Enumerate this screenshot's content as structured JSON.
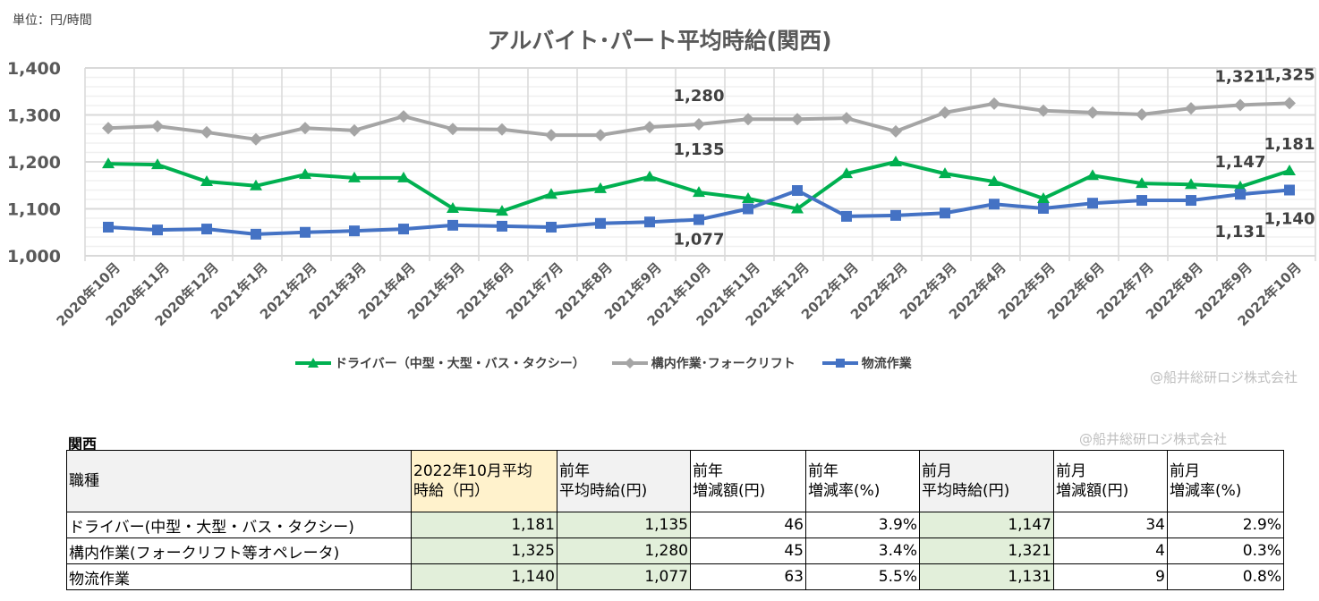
{
  "unit_label": "単位：円/時間",
  "chart_data": {
    "type": "line",
    "title": "アルバイト･パート平均時給(関西)",
    "ylim": [
      1000,
      1400
    ],
    "yticks": [
      "1,000",
      "1,100",
      "1,200",
      "1,300",
      "1,400"
    ],
    "grid": true,
    "legend_position": "bottom",
    "categories": [
      "2020年10月",
      "2020年11月",
      "2020年12月",
      "2021年1月",
      "2021年2月",
      "2021年3月",
      "2021年4月",
      "2021年5月",
      "2021年6月",
      "2021年7月",
      "2021年8月",
      "2021年9月",
      "2021年10月",
      "2021年11月",
      "2021年12月",
      "2022年1月",
      "2022年2月",
      "2022年3月",
      "2022年4月",
      "2022年5月",
      "2022年6月",
      "2022年7月",
      "2022年8月",
      "2022年9月",
      "2022年10月"
    ],
    "series": [
      {
        "name": "ドライバー（中型・大型・バス・タクシー）",
        "color": "#00b050",
        "marker": "triangle",
        "values": [
          1196,
          1194,
          1158,
          1149,
          1173,
          1166,
          1166,
          1101,
          1095,
          1131,
          1143,
          1168,
          1135,
          1122,
          1100,
          1175,
          1200,
          1175,
          1158,
          1122,
          1171,
          1154,
          1152,
          1147,
          1181
        ]
      },
      {
        "name": "構内作業･フォークリフト",
        "color": "#a5a5a5",
        "marker": "diamond",
        "values": [
          1272,
          1276,
          1263,
          1248,
          1272,
          1267,
          1297,
          1270,
          1269,
          1257,
          1257,
          1274,
          1280,
          1291,
          1291,
          1293,
          1265,
          1305,
          1324,
          1309,
          1305,
          1301,
          1314,
          1321,
          1325
        ]
      },
      {
        "name": "物流作業",
        "color": "#4472c4",
        "marker": "square",
        "values": [
          1061,
          1055,
          1057,
          1046,
          1050,
          1053,
          1057,
          1065,
          1063,
          1061,
          1069,
          1072,
          1077,
          1100,
          1139,
          1084,
          1086,
          1091,
          1110,
          1101,
          1112,
          1118,
          1118,
          1131,
          1140
        ]
      }
    ],
    "data_labels": [
      {
        "series": 1,
        "index": 12,
        "text": "1,280"
      },
      {
        "series": 0,
        "index": 12,
        "text": "1,135"
      },
      {
        "series": 2,
        "index": 12,
        "text": "1,077"
      },
      {
        "series": 1,
        "index": 23,
        "text": "1,321"
      },
      {
        "series": 1,
        "index": 24,
        "text": "1,325"
      },
      {
        "series": 0,
        "index": 23,
        "text": "1,147"
      },
      {
        "series": 0,
        "index": 24,
        "text": "1,181"
      },
      {
        "series": 2,
        "index": 23,
        "text": "1,131"
      },
      {
        "series": 2,
        "index": 24,
        "text": "1,140"
      }
    ]
  },
  "copyright": "@船井総研ロジ株式会社",
  "table": {
    "region": "関西",
    "headers": [
      "職種",
      "2022年10月平均時給（円）",
      "前年平均時給(円)",
      "前年増減額(円)",
      "前年増減率(%)",
      "前月平均時給(円)",
      "前月増減額(円)",
      "前月増減率(%)"
    ],
    "header_lines": [
      [
        "職種"
      ],
      [
        "2022年10月平均",
        "時給（円）"
      ],
      [
        "前年",
        "平均時給(円)"
      ],
      [
        "前年",
        "増減額(円)"
      ],
      [
        "前年",
        "増減率(%)"
      ],
      [
        "前月",
        "平均時給(円)"
      ],
      [
        "前月",
        "増減額(円)"
      ],
      [
        "前月",
        "増減率(%)"
      ]
    ],
    "rows": [
      [
        "ドライバー(中型・大型・バス・タクシー)",
        "1,181",
        "1,135",
        "46",
        "3.9%",
        "1,147",
        "34",
        "2.9%"
      ],
      [
        "構内作業(フォークリフト等オペレータ)",
        "1,325",
        "1,280",
        "45",
        "3.4%",
        "1,321",
        "4",
        "0.3%"
      ],
      [
        "物流作業",
        "1,140",
        "1,077",
        "63",
        "5.5%",
        "1,131",
        "9",
        "0.8%"
      ]
    ]
  }
}
